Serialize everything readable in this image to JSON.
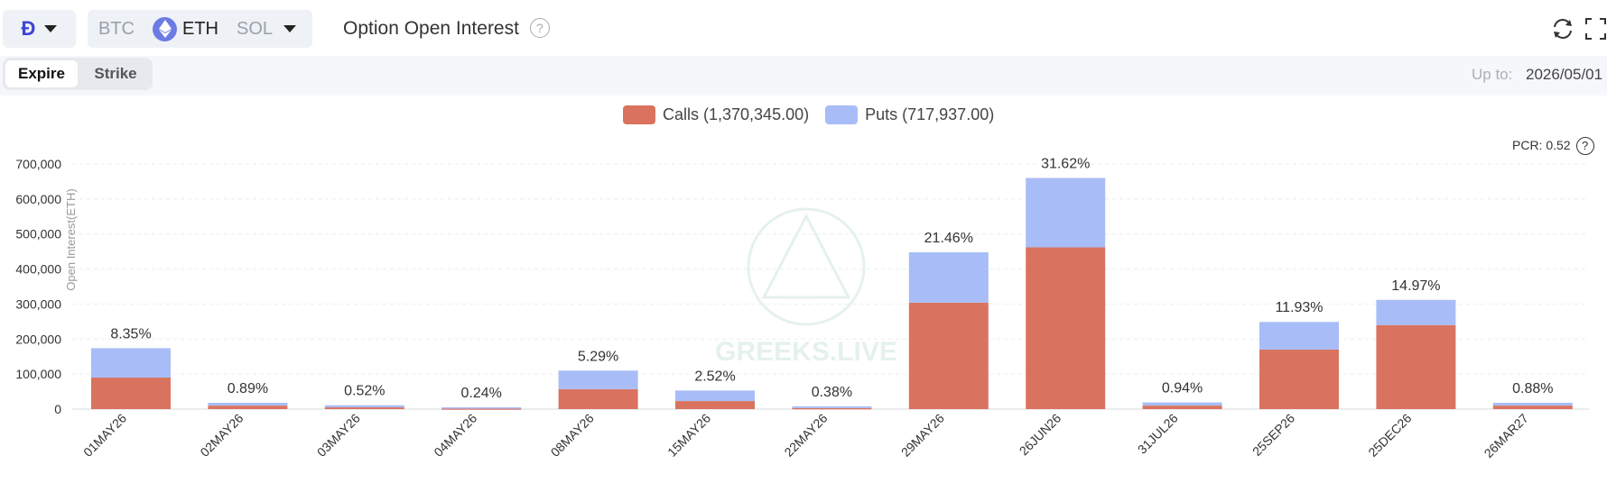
{
  "header": {
    "exchange_icon": "deribit-logo-icon",
    "assets": [
      "BTC",
      "ETH",
      "SOL"
    ],
    "active_asset": "ETH",
    "title": "Option Open Interest",
    "help": "?"
  },
  "toolbar": {
    "tabs": [
      "Expire",
      "Strike"
    ],
    "active_tab": "Expire",
    "up_to_label": "Up to:",
    "up_to_value": "2026/05/01"
  },
  "legend": {
    "calls": "Calls (1,370,345.00)",
    "puts": "Puts (717,937.00)"
  },
  "pcr": "PCR: 0.52",
  "watermark": "GREEKS.LIVE",
  "colors": {
    "calls": "#d9735f",
    "puts": "#a8bdf7",
    "accent": "#3c43d6"
  },
  "chart_data": {
    "type": "bar",
    "stacked": true,
    "categories": [
      "01MAY26",
      "02MAY26",
      "03MAY26",
      "04MAY26",
      "08MAY26",
      "15MAY26",
      "22MAY26",
      "29MAY26",
      "26JUN26",
      "31JUL26",
      "25SEP26",
      "25DEC26",
      "26MAR27"
    ],
    "series": [
      {
        "name": "Calls",
        "values": [
          90000,
          10000,
          5000,
          2000,
          57000,
          23000,
          3000,
          304000,
          462000,
          10000,
          170000,
          240000,
          10000
        ]
      },
      {
        "name": "Puts",
        "values": [
          84000,
          8000,
          6000,
          3000,
          53000,
          30000,
          5000,
          144000,
          198000,
          9000,
          79000,
          72000,
          8000
        ]
      }
    ],
    "data_labels": [
      "8.35%",
      "0.89%",
      "0.52%",
      "0.24%",
      "5.29%",
      "2.52%",
      "0.38%",
      "21.46%",
      "31.62%",
      "0.94%",
      "11.93%",
      "14.97%",
      "0.88%"
    ],
    "y_ticks": [
      "0",
      "100,000",
      "200,000",
      "300,000",
      "400,000",
      "500,000",
      "600,000",
      "700,000"
    ],
    "ylabel": "Open Interest(ETH)",
    "ylim": [
      0,
      700000
    ],
    "grid": true,
    "legend_position": "top-center"
  }
}
